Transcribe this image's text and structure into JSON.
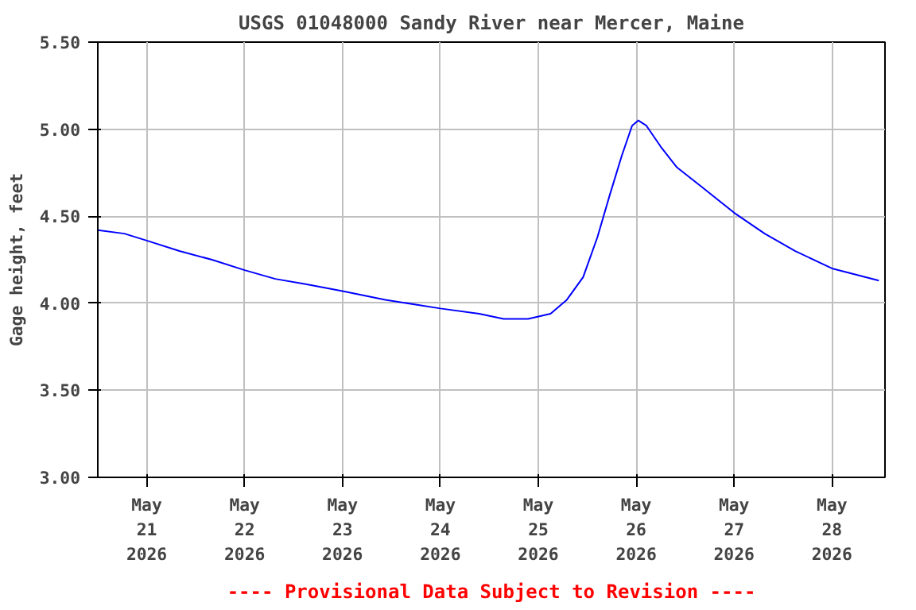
{
  "chart_data": {
    "type": "line",
    "title": "USGS 01048000 Sandy River near Mercer, Maine",
    "ylabel": "Gage height, feet",
    "x": [
      "2026-05-20T12:00",
      "2026-05-20T18:30",
      "2026-05-21T00:00",
      "2026-05-21T08:00",
      "2026-05-21T16:00",
      "2026-05-22T00:00",
      "2026-05-22T07:30",
      "2026-05-22T15:00",
      "2026-05-23T00:00",
      "2026-05-23T10:30",
      "2026-05-24T00:00",
      "2026-05-24T09:30",
      "2026-05-24T15:30",
      "2026-05-24T21:30",
      "2026-05-25T03:00",
      "2026-05-25T07:00",
      "2026-05-25T11:00",
      "2026-05-25T14:30",
      "2026-05-25T17:30",
      "2026-05-25T20:30",
      "2026-05-25T23:00",
      "2026-05-26T00:30",
      "2026-05-26T02:30",
      "2026-05-26T06:00",
      "2026-05-26T10:00",
      "2026-05-26T16:00",
      "2026-05-27T00:00",
      "2026-05-27T07:30",
      "2026-05-27T15:00",
      "2026-05-28T00:00",
      "2026-05-28T11:30"
    ],
    "series": [
      {
        "color": "#0000ff",
        "values": [
          4.42,
          4.4,
          4.36,
          4.3,
          4.25,
          4.19,
          4.14,
          4.11,
          4.07,
          4.02,
          3.97,
          3.94,
          3.91,
          3.91,
          3.94,
          4.02,
          4.15,
          4.38,
          4.62,
          4.85,
          5.02,
          5.05,
          5.02,
          4.9,
          4.78,
          4.67,
          4.52,
          4.4,
          4.3,
          4.2,
          4.13
        ]
      }
    ],
    "xlim": [
      "2026-05-20T12:00",
      "2026-05-28T13:00"
    ],
    "xticks": [
      {
        "value": "2026-05-21",
        "label": "May\n21\n2026"
      },
      {
        "value": "2026-05-22",
        "label": "May\n22\n2026"
      },
      {
        "value": "2026-05-23",
        "label": "May\n23\n2026"
      },
      {
        "value": "2026-05-24",
        "label": "May\n24\n2026"
      },
      {
        "value": "2026-05-25",
        "label": "May\n25\n2026"
      },
      {
        "value": "2026-05-26",
        "label": "May\n26\n2026"
      },
      {
        "value": "2026-05-27",
        "label": "May\n27\n2026"
      },
      {
        "value": "2026-05-28",
        "label": "May\n28\n2026"
      }
    ],
    "ylim": [
      3.0,
      5.5
    ],
    "yticks": [
      {
        "value": 3.0,
        "label": "3.00"
      },
      {
        "value": 3.5,
        "label": "3.50"
      },
      {
        "value": 4.0,
        "label": "4.00"
      },
      {
        "value": 4.5,
        "label": "4.50"
      },
      {
        "value": 5.0,
        "label": "5.00"
      },
      {
        "value": 5.5,
        "label": "5.50"
      }
    ],
    "grid": true,
    "marker": "none",
    "line_style": "solid",
    "annotations": [
      "---- Provisional Data Subject to Revision ----"
    ]
  }
}
